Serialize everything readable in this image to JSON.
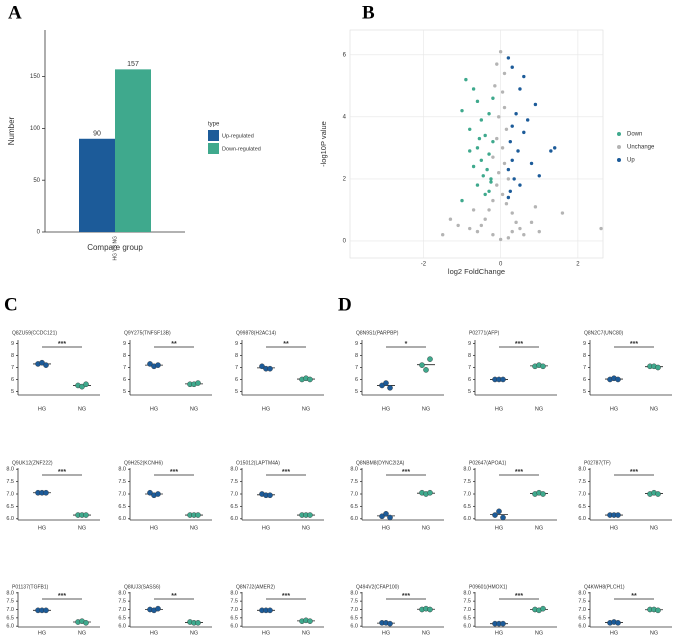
{
  "panel_labels": [
    "A",
    "B",
    "C",
    "D"
  ],
  "chart_data": [
    {
      "type": "bar",
      "categories": [
        "HG VS NG"
      ],
      "series": [
        {
          "name": "Up-regulated",
          "color": "#1c5b99",
          "values": [
            90
          ]
        },
        {
          "name": "Down-regulated",
          "color": "#3fa98d",
          "values": [
            157
          ]
        }
      ],
      "xlabel": "Compare group",
      "ylabel": "Number",
      "legend_title": "type",
      "ylim": [
        0,
        195
      ],
      "yticks": [
        0,
        50,
        100,
        150
      ]
    },
    {
      "type": "scatter",
      "xlabel": "log2 FoldChange",
      "ylabel": "-log10P value",
      "grid": true,
      "xlim": [
        -3.9,
        2.65
      ],
      "ylim": [
        -0.55,
        6.8
      ],
      "xticks": [
        -2,
        0,
        2
      ],
      "yticks": [
        0,
        2,
        4,
        6
      ],
      "series": [
        {
          "name": "Down",
          "color": "#3fa98d",
          "x": [
            -0.9,
            -0.7,
            -1.0,
            -0.6,
            -0.5,
            -0.8,
            -0.4,
            -0.6,
            -0.3,
            -0.5,
            -0.35,
            -0.45,
            -0.25,
            -0.6,
            -0.3,
            -0.4,
            -1.0,
            -0.7,
            -0.2,
            -0.3,
            -0.2,
            -0.55,
            -0.8,
            -0.25
          ],
          "values": [
            5.2,
            4.9,
            4.2,
            4.5,
            3.9,
            3.6,
            3.4,
            3.0,
            2.8,
            2.6,
            2.3,
            2.1,
            1.9,
            1.8,
            1.6,
            1.5,
            1.3,
            2.4,
            3.2,
            4.1,
            4.6,
            3.3,
            2.9,
            2.0
          ]
        },
        {
          "name": "Unchange",
          "color": "#b4b4b4",
          "x": [
            0,
            -0.1,
            0.1,
            -0.15,
            0.05,
            0.1,
            -0.05,
            0.15,
            -0.1,
            0.05,
            -0.2,
            0.1,
            -0.05,
            0.2,
            -0.1,
            0.05,
            -0.2,
            0.15,
            -0.3,
            0.3,
            -0.4,
            0.4,
            -0.5,
            0.5,
            -0.6,
            0.6,
            -0.2,
            0.2,
            0,
            -0.8,
            0.8,
            -1.1,
            1.0,
            -1.5,
            1.6,
            2.6,
            -1.3,
            0.9,
            -0.7,
            0.3
          ],
          "values": [
            6.1,
            5.7,
            5.4,
            5.0,
            4.8,
            4.3,
            4.0,
            3.6,
            3.3,
            3.0,
            2.7,
            2.5,
            2.2,
            2.0,
            1.8,
            1.5,
            1.3,
            1.2,
            1.0,
            0.9,
            0.7,
            0.6,
            0.5,
            0.4,
            0.3,
            0.2,
            0.2,
            0.1,
            0.05,
            0.4,
            0.6,
            0.5,
            0.3,
            0.2,
            0.9,
            0.4,
            0.7,
            1.1,
            1.0,
            0.3
          ]
        },
        {
          "name": "Up",
          "color": "#1c5b99",
          "x": [
            0.2,
            0.3,
            0.6,
            0.5,
            0.9,
            0.4,
            0.3,
            0.6,
            0.25,
            0.45,
            0.3,
            0.8,
            0.2,
            0.35,
            0.5,
            0.25,
            1.0,
            1.3,
            1.4,
            0.7,
            0.2
          ],
          "values": [
            5.9,
            5.6,
            5.3,
            4.9,
            4.4,
            4.1,
            3.7,
            3.5,
            3.2,
            2.9,
            2.6,
            2.5,
            2.3,
            2.0,
            1.8,
            1.6,
            2.1,
            2.9,
            3.0,
            3.9,
            1.4
          ]
        }
      ]
    },
    {
      "type": "dot",
      "title": "Q8ZU59(CCDC121)",
      "categories": [
        "HG",
        "NG"
      ],
      "values": [
        [
          7.3,
          7.4,
          7.2
        ],
        [
          5.5,
          5.4,
          5.6
        ]
      ],
      "colors": [
        "#1c5b99",
        "#3fa98d"
      ],
      "significance": "***",
      "ylim": [
        4.7,
        9.3
      ],
      "yticks": [
        5,
        6,
        7,
        8,
        9
      ]
    },
    {
      "type": "dot",
      "title": "Q9Y275(TNFSF13B)",
      "categories": [
        "HG",
        "NG"
      ],
      "values": [
        [
          7.3,
          7.1,
          7.2
        ],
        [
          5.6,
          5.6,
          5.7
        ]
      ],
      "colors": [
        "#1c5b99",
        "#3fa98d"
      ],
      "significance": "**",
      "ylim": [
        4.7,
        9.3
      ],
      "yticks": [
        5,
        6,
        7,
        8,
        9
      ]
    },
    {
      "type": "dot",
      "title": "Q99878(H2AC14)",
      "categories": [
        "HG",
        "NG"
      ],
      "values": [
        [
          7.1,
          6.9,
          6.9
        ],
        [
          6.0,
          6.1,
          6.0
        ]
      ],
      "colors": [
        "#1c5b99",
        "#3fa98d"
      ],
      "significance": "**",
      "ylim": [
        4.7,
        9.3
      ],
      "yticks": [
        5,
        6,
        7,
        8,
        9
      ]
    },
    {
      "type": "dot",
      "title": "Q9UK12(ZNF222)",
      "categories": [
        "HG",
        "NG"
      ],
      "values": [
        [
          7.05,
          7.05,
          7.05
        ],
        [
          6.15,
          6.15,
          6.15
        ]
      ],
      "colors": [
        "#1c5b99",
        "#3fa98d"
      ],
      "significance": "***",
      "ylim": [
        5.95,
        8.05
      ],
      "yticks": [
        {
          "value": 6,
          "label": "6.0"
        },
        6.5,
        {
          "value": 7,
          "label": "7.0"
        },
        7.5,
        {
          "value": 8,
          "label": "8.0"
        }
      ]
    },
    {
      "type": "dot",
      "title": "Q9H252(KCNH6)",
      "categories": [
        "HG",
        "NG"
      ],
      "values": [
        [
          7.05,
          6.95,
          7.0
        ],
        [
          6.15,
          6.15,
          6.15
        ]
      ],
      "colors": [
        "#1c5b99",
        "#3fa98d"
      ],
      "significance": "***",
      "ylim": [
        5.95,
        8.05
      ],
      "yticks": [
        {
          "value": 6,
          "label": "6.0"
        },
        6.5,
        {
          "value": 7,
          "label": "7.0"
        },
        7.5,
        {
          "value": 8,
          "label": "8.0"
        }
      ]
    },
    {
      "type": "dot",
      "title": "O15012(LAPTM4A)",
      "categories": [
        "HG",
        "NG"
      ],
      "values": [
        [
          7.0,
          6.95,
          6.95
        ],
        [
          6.15,
          6.15,
          6.15
        ]
      ],
      "colors": [
        "#1c5b99",
        "#3fa98d"
      ],
      "significance": "***",
      "ylim": [
        5.95,
        8.05
      ],
      "yticks": [
        {
          "value": 6,
          "label": "6.0"
        },
        6.5,
        {
          "value": 7,
          "label": "7.0"
        },
        7.5,
        {
          "value": 8,
          "label": "8.0"
        }
      ]
    },
    {
      "type": "dot",
      "title": "P01137(TGFB1)",
      "categories": [
        "HG",
        "NG"
      ],
      "values": [
        [
          6.95,
          6.95,
          6.95
        ],
        [
          6.25,
          6.3,
          6.2
        ]
      ],
      "colors": [
        "#1c5b99",
        "#3fa98d"
      ],
      "significance": "***",
      "ylim": [
        5.95,
        8.05
      ],
      "yticks": [
        {
          "value": 6,
          "label": "6.0"
        },
        6.5,
        {
          "value": 7,
          "label": "7.0"
        },
        7.5,
        {
          "value": 8,
          "label": "8.0"
        }
      ]
    },
    {
      "type": "dot",
      "title": "Q8IUJ3(SASS6)",
      "categories": [
        "HG",
        "NG"
      ],
      "values": [
        [
          7.0,
          6.95,
          7.05
        ],
        [
          6.25,
          6.2,
          6.2
        ]
      ],
      "colors": [
        "#1c5b99",
        "#3fa98d"
      ],
      "significance": "**",
      "ylim": [
        5.95,
        8.05
      ],
      "yticks": [
        {
          "value": 6,
          "label": "6.0"
        },
        6.5,
        {
          "value": 7,
          "label": "7.0"
        },
        7.5,
        {
          "value": 8,
          "label": "8.0"
        }
      ]
    },
    {
      "type": "dot",
      "title": "Q8N7J2(AMER2)",
      "categories": [
        "HG",
        "NG"
      ],
      "values": [
        [
          6.95,
          6.95,
          6.95
        ],
        [
          6.3,
          6.35,
          6.3
        ]
      ],
      "colors": [
        "#1c5b99",
        "#3fa98d"
      ],
      "significance": "***",
      "ylim": [
        5.95,
        8.05
      ],
      "yticks": [
        {
          "value": 6,
          "label": "6.0"
        },
        6.5,
        {
          "value": 7,
          "label": "7.0"
        },
        7.5,
        {
          "value": 8,
          "label": "8.0"
        }
      ]
    },
    {
      "type": "dot",
      "title": "Q8N9S1(PARPBP)",
      "categories": [
        "HG",
        "NG"
      ],
      "values": [
        [
          5.5,
          5.7,
          5.3
        ],
        [
          7.2,
          6.8,
          7.7
        ]
      ],
      "colors": [
        "#1c5b99",
        "#3fa98d"
      ],
      "significance": "*",
      "ylim": [
        4.7,
        9.3
      ],
      "yticks": [
        5,
        6,
        7,
        8,
        9
      ]
    },
    {
      "type": "dot",
      "title": "P02771(AFP)",
      "categories": [
        "HG",
        "NG"
      ],
      "values": [
        [
          6.0,
          6.0,
          6.0
        ],
        [
          7.1,
          7.2,
          7.1
        ]
      ],
      "colors": [
        "#1c5b99",
        "#3fa98d"
      ],
      "significance": "***",
      "ylim": [
        4.7,
        9.3
      ],
      "yticks": [
        5,
        6,
        7,
        8,
        9
      ]
    },
    {
      "type": "dot",
      "title": "Q8N2C7(UNC80)",
      "categories": [
        "HG",
        "NG"
      ],
      "values": [
        [
          6.0,
          6.1,
          6.0
        ],
        [
          7.1,
          7.1,
          7.0
        ]
      ],
      "colors": [
        "#1c5b99",
        "#3fa98d"
      ],
      "significance": "***",
      "ylim": [
        4.7,
        9.3
      ],
      "yticks": [
        5,
        6,
        7,
        8,
        9
      ]
    },
    {
      "type": "dot",
      "title": "Q8NBM8(DYNC2I2A)",
      "categories": [
        "HG",
        "NG"
      ],
      "values": [
        [
          6.1,
          6.2,
          6.05
        ],
        [
          7.05,
          7.0,
          7.05
        ]
      ],
      "colors": [
        "#1c5b99",
        "#3fa98d"
      ],
      "significance": "***",
      "ylim": [
        5.95,
        8.05
      ],
      "yticks": [
        {
          "value": 6,
          "label": "6.0"
        },
        6.5,
        {
          "value": 7,
          "label": "7.0"
        },
        7.5,
        {
          "value": 8,
          "label": "8.0"
        }
      ]
    },
    {
      "type": "dot",
      "title": "P02647(APOA1)",
      "categories": [
        "HG",
        "NG"
      ],
      "values": [
        [
          6.15,
          6.3,
          6.05
        ],
        [
          7.0,
          7.05,
          7.0
        ]
      ],
      "colors": [
        "#1c5b99",
        "#3fa98d"
      ],
      "significance": "***",
      "ylim": [
        5.95,
        8.05
      ],
      "yticks": [
        {
          "value": 6,
          "label": "6.0"
        },
        6.5,
        {
          "value": 7,
          "label": "7.0"
        },
        7.5,
        {
          "value": 8,
          "label": "8.0"
        }
      ]
    },
    {
      "type": "dot",
      "title": "P02787(TF)",
      "categories": [
        "HG",
        "NG"
      ],
      "values": [
        [
          6.15,
          6.15,
          6.15
        ],
        [
          7.0,
          7.05,
          7.0
        ]
      ],
      "colors": [
        "#1c5b99",
        "#3fa98d"
      ],
      "significance": "***",
      "ylim": [
        5.95,
        8.05
      ],
      "yticks": [
        {
          "value": 6,
          "label": "6.0"
        },
        6.5,
        {
          "value": 7,
          "label": "7.0"
        },
        7.5,
        {
          "value": 8,
          "label": "8.0"
        }
      ]
    },
    {
      "type": "dot",
      "title": "Q494V2(CFAP100)",
      "categories": [
        "HG",
        "NG"
      ],
      "values": [
        [
          6.2,
          6.2,
          6.15
        ],
        [
          7.0,
          7.05,
          7.0
        ]
      ],
      "colors": [
        "#1c5b99",
        "#3fa98d"
      ],
      "significance": "***",
      "ylim": [
        5.95,
        8.05
      ],
      "yticks": [
        {
          "value": 6,
          "label": "6.0"
        },
        6.5,
        {
          "value": 7,
          "label": "7.0"
        },
        7.5,
        {
          "value": 8,
          "label": "8.0"
        }
      ]
    },
    {
      "type": "dot",
      "title": "P09601(HMOX1)",
      "categories": [
        "HG",
        "NG"
      ],
      "values": [
        [
          6.15,
          6.15,
          6.15
        ],
        [
          7.0,
          6.95,
          7.05
        ]
      ],
      "colors": [
        "#1c5b99",
        "#3fa98d"
      ],
      "significance": "***",
      "ylim": [
        5.95,
        8.05
      ],
      "yticks": [
        {
          "value": 6,
          "label": "6.0"
        },
        6.5,
        {
          "value": 7,
          "label": "7.0"
        },
        7.5,
        {
          "value": 8,
          "label": "8.0"
        }
      ]
    },
    {
      "type": "dot",
      "title": "Q4KWH8(PLCH1)",
      "categories": [
        "HG",
        "NG"
      ],
      "values": [
        [
          6.2,
          6.25,
          6.2
        ],
        [
          7.0,
          7.0,
          6.95
        ]
      ],
      "colors": [
        "#1c5b99",
        "#3fa98d"
      ],
      "significance": "**",
      "ylim": [
        5.95,
        8.05
      ],
      "yticks": [
        {
          "value": 6,
          "label": "6.0"
        },
        6.5,
        {
          "value": 7,
          "label": "7.0"
        },
        7.5,
        {
          "value": 8,
          "label": "8.0"
        }
      ]
    }
  ]
}
